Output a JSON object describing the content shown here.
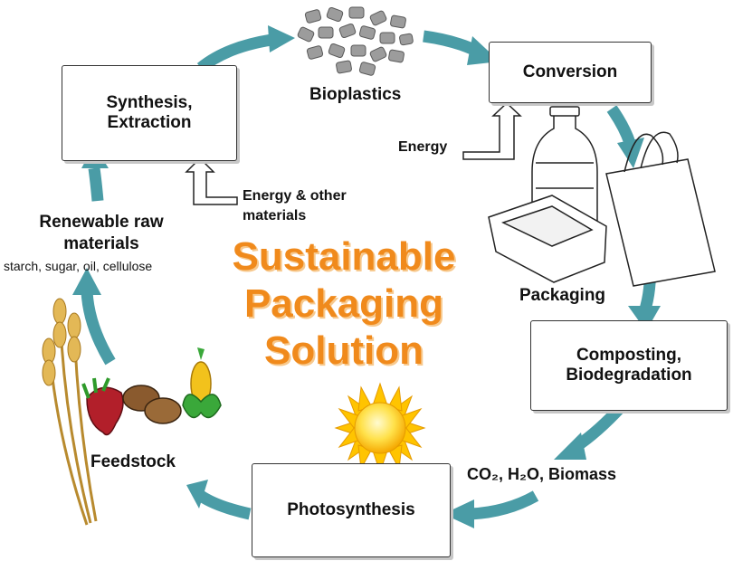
{
  "title_lines": [
    "Sustainable",
    "Packaging",
    "Solution"
  ],
  "nodes": {
    "synthesis": "Synthesis,\nExtraction",
    "bioplastics": "Bioplastics",
    "conversion": "Conversion",
    "packaging": "Packaging",
    "composting": "Composting,\nBiodegradation",
    "co2": "CO₂, H₂O, Biomass",
    "photosynthesis": "Photosynthesis",
    "feedstock": "Feedstock",
    "renewable": "Renewable raw\nmaterials",
    "renewable_sub": "starch, sugar, oil, cellulose"
  },
  "inputs": {
    "energy": "Energy",
    "energy_other": "Energy & other\nmaterials"
  },
  "colors": {
    "arrow": "#4a9ca6",
    "title": "#f08a1c",
    "sun": "#ffd21f"
  }
}
